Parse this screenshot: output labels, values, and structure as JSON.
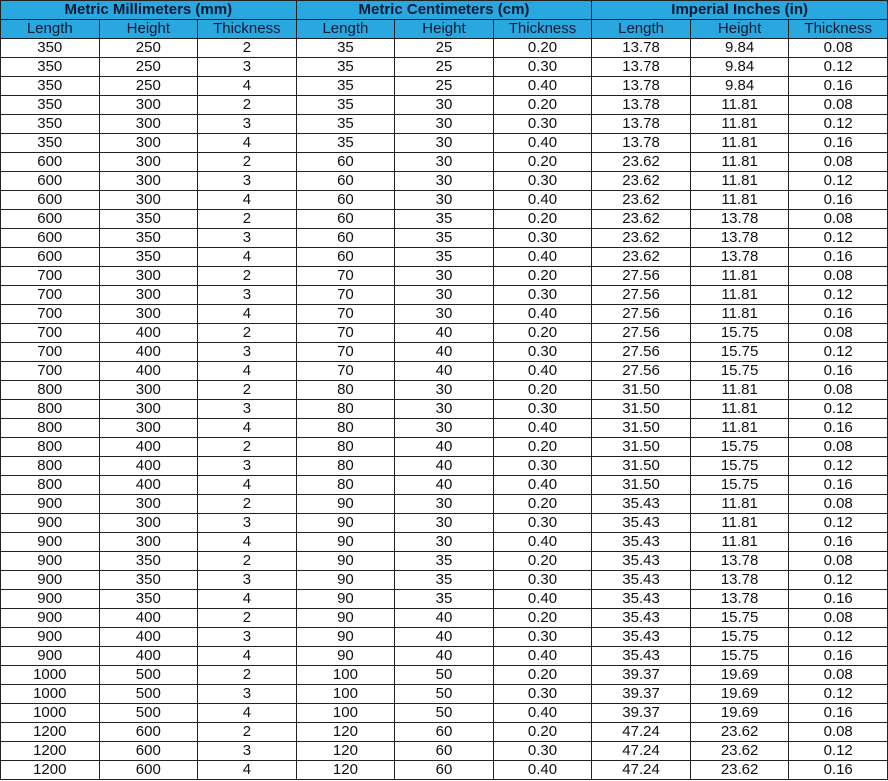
{
  "groups": [
    "Metric Millimeters (mm)",
    "Metric Centimeters (cm)",
    "Imperial Inches (in)"
  ],
  "columns": [
    "Length",
    "Height",
    "Thickness",
    "Length",
    "Height",
    "Thickness",
    "Length",
    "Height",
    "Thickness"
  ],
  "header_color": "#29a8e0",
  "rows": [
    [
      "350",
      "250",
      "2",
      "35",
      "25",
      "0.20",
      "13.78",
      "9.84",
      "0.08"
    ],
    [
      "350",
      "250",
      "3",
      "35",
      "25",
      "0.30",
      "13.78",
      "9.84",
      "0.12"
    ],
    [
      "350",
      "250",
      "4",
      "35",
      "25",
      "0.40",
      "13.78",
      "9.84",
      "0.16"
    ],
    [
      "350",
      "300",
      "2",
      "35",
      "30",
      "0.20",
      "13.78",
      "11.81",
      "0.08"
    ],
    [
      "350",
      "300",
      "3",
      "35",
      "30",
      "0.30",
      "13.78",
      "11.81",
      "0.12"
    ],
    [
      "350",
      "300",
      "4",
      "35",
      "30",
      "0.40",
      "13.78",
      "11.81",
      "0.16"
    ],
    [
      "600",
      "300",
      "2",
      "60",
      "30",
      "0.20",
      "23.62",
      "11.81",
      "0.08"
    ],
    [
      "600",
      "300",
      "3",
      "60",
      "30",
      "0.30",
      "23.62",
      "11.81",
      "0.12"
    ],
    [
      "600",
      "300",
      "4",
      "60",
      "30",
      "0.40",
      "23.62",
      "11.81",
      "0.16"
    ],
    [
      "600",
      "350",
      "2",
      "60",
      "35",
      "0.20",
      "23.62",
      "13.78",
      "0.08"
    ],
    [
      "600",
      "350",
      "3",
      "60",
      "35",
      "0.30",
      "23.62",
      "13.78",
      "0.12"
    ],
    [
      "600",
      "350",
      "4",
      "60",
      "35",
      "0.40",
      "23.62",
      "13.78",
      "0.16"
    ],
    [
      "700",
      "300",
      "2",
      "70",
      "30",
      "0.20",
      "27.56",
      "11.81",
      "0.08"
    ],
    [
      "700",
      "300",
      "3",
      "70",
      "30",
      "0.30",
      "27.56",
      "11.81",
      "0.12"
    ],
    [
      "700",
      "300",
      "4",
      "70",
      "30",
      "0.40",
      "27.56",
      "11.81",
      "0.16"
    ],
    [
      "700",
      "400",
      "2",
      "70",
      "40",
      "0.20",
      "27.56",
      "15.75",
      "0.08"
    ],
    [
      "700",
      "400",
      "3",
      "70",
      "40",
      "0.30",
      "27.56",
      "15.75",
      "0.12"
    ],
    [
      "700",
      "400",
      "4",
      "70",
      "40",
      "0.40",
      "27.56",
      "15.75",
      "0.16"
    ],
    [
      "800",
      "300",
      "2",
      "80",
      "30",
      "0.20",
      "31.50",
      "11.81",
      "0.08"
    ],
    [
      "800",
      "300",
      "3",
      "80",
      "30",
      "0.30",
      "31.50",
      "11.81",
      "0.12"
    ],
    [
      "800",
      "300",
      "4",
      "80",
      "30",
      "0.40",
      "31.50",
      "11.81",
      "0.16"
    ],
    [
      "800",
      "400",
      "2",
      "80",
      "40",
      "0.20",
      "31.50",
      "15.75",
      "0.08"
    ],
    [
      "800",
      "400",
      "3",
      "80",
      "40",
      "0.30",
      "31.50",
      "15.75",
      "0.12"
    ],
    [
      "800",
      "400",
      "4",
      "80",
      "40",
      "0.40",
      "31.50",
      "15.75",
      "0.16"
    ],
    [
      "900",
      "300",
      "2",
      "90",
      "30",
      "0.20",
      "35.43",
      "11.81",
      "0.08"
    ],
    [
      "900",
      "300",
      "3",
      "90",
      "30",
      "0.30",
      "35.43",
      "11.81",
      "0.12"
    ],
    [
      "900",
      "300",
      "4",
      "90",
      "30",
      "0.40",
      "35.43",
      "11.81",
      "0.16"
    ],
    [
      "900",
      "350",
      "2",
      "90",
      "35",
      "0.20",
      "35.43",
      "13.78",
      "0.08"
    ],
    [
      "900",
      "350",
      "3",
      "90",
      "35",
      "0.30",
      "35.43",
      "13.78",
      "0.12"
    ],
    [
      "900",
      "350",
      "4",
      "90",
      "35",
      "0.40",
      "35.43",
      "13.78",
      "0.16"
    ],
    [
      "900",
      "400",
      "2",
      "90",
      "40",
      "0.20",
      "35.43",
      "15.75",
      "0.08"
    ],
    [
      "900",
      "400",
      "3",
      "90",
      "40",
      "0.30",
      "35.43",
      "15.75",
      "0.12"
    ],
    [
      "900",
      "400",
      "4",
      "90",
      "40",
      "0.40",
      "35.43",
      "15.75",
      "0.16"
    ],
    [
      "1000",
      "500",
      "2",
      "100",
      "50",
      "0.20",
      "39.37",
      "19.69",
      "0.08"
    ],
    [
      "1000",
      "500",
      "3",
      "100",
      "50",
      "0.30",
      "39.37",
      "19.69",
      "0.12"
    ],
    [
      "1000",
      "500",
      "4",
      "100",
      "50",
      "0.40",
      "39.37",
      "19.69",
      "0.16"
    ],
    [
      "1200",
      "600",
      "2",
      "120",
      "60",
      "0.20",
      "47.24",
      "23.62",
      "0.08"
    ],
    [
      "1200",
      "600",
      "3",
      "120",
      "60",
      "0.30",
      "47.24",
      "23.62",
      "0.12"
    ],
    [
      "1200",
      "600",
      "4",
      "120",
      "60",
      "0.40",
      "47.24",
      "23.62",
      "0.16"
    ]
  ]
}
